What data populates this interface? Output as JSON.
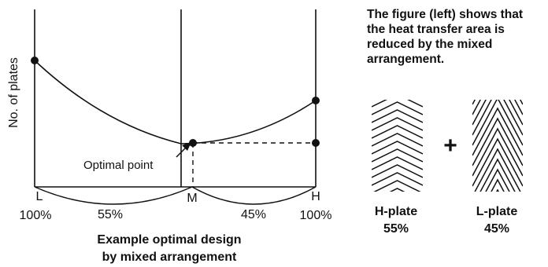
{
  "diagram": {
    "y_axis_label": "No. of plates",
    "optimal_point_label": "Optimal point",
    "x_markers": [
      "L",
      "M",
      "H"
    ],
    "x_percent_left": "100%",
    "x_percent_right": "100%",
    "span_left_label": "55%",
    "span_right_label": "45%",
    "caption_line1": "Example optimal design",
    "caption_line2": "by mixed arrangement"
  },
  "note": {
    "text": "The figure (left) shows that the heat transfer area is reduced by the mixed arrangement."
  },
  "plates": {
    "plus_sign": "+",
    "h_plate": {
      "name": "H-plate",
      "share": "55%"
    },
    "l_plate": {
      "name": "L-plate",
      "share": "45%"
    }
  },
  "colors": {
    "ink": "#111111",
    "background": "#ffffff"
  }
}
